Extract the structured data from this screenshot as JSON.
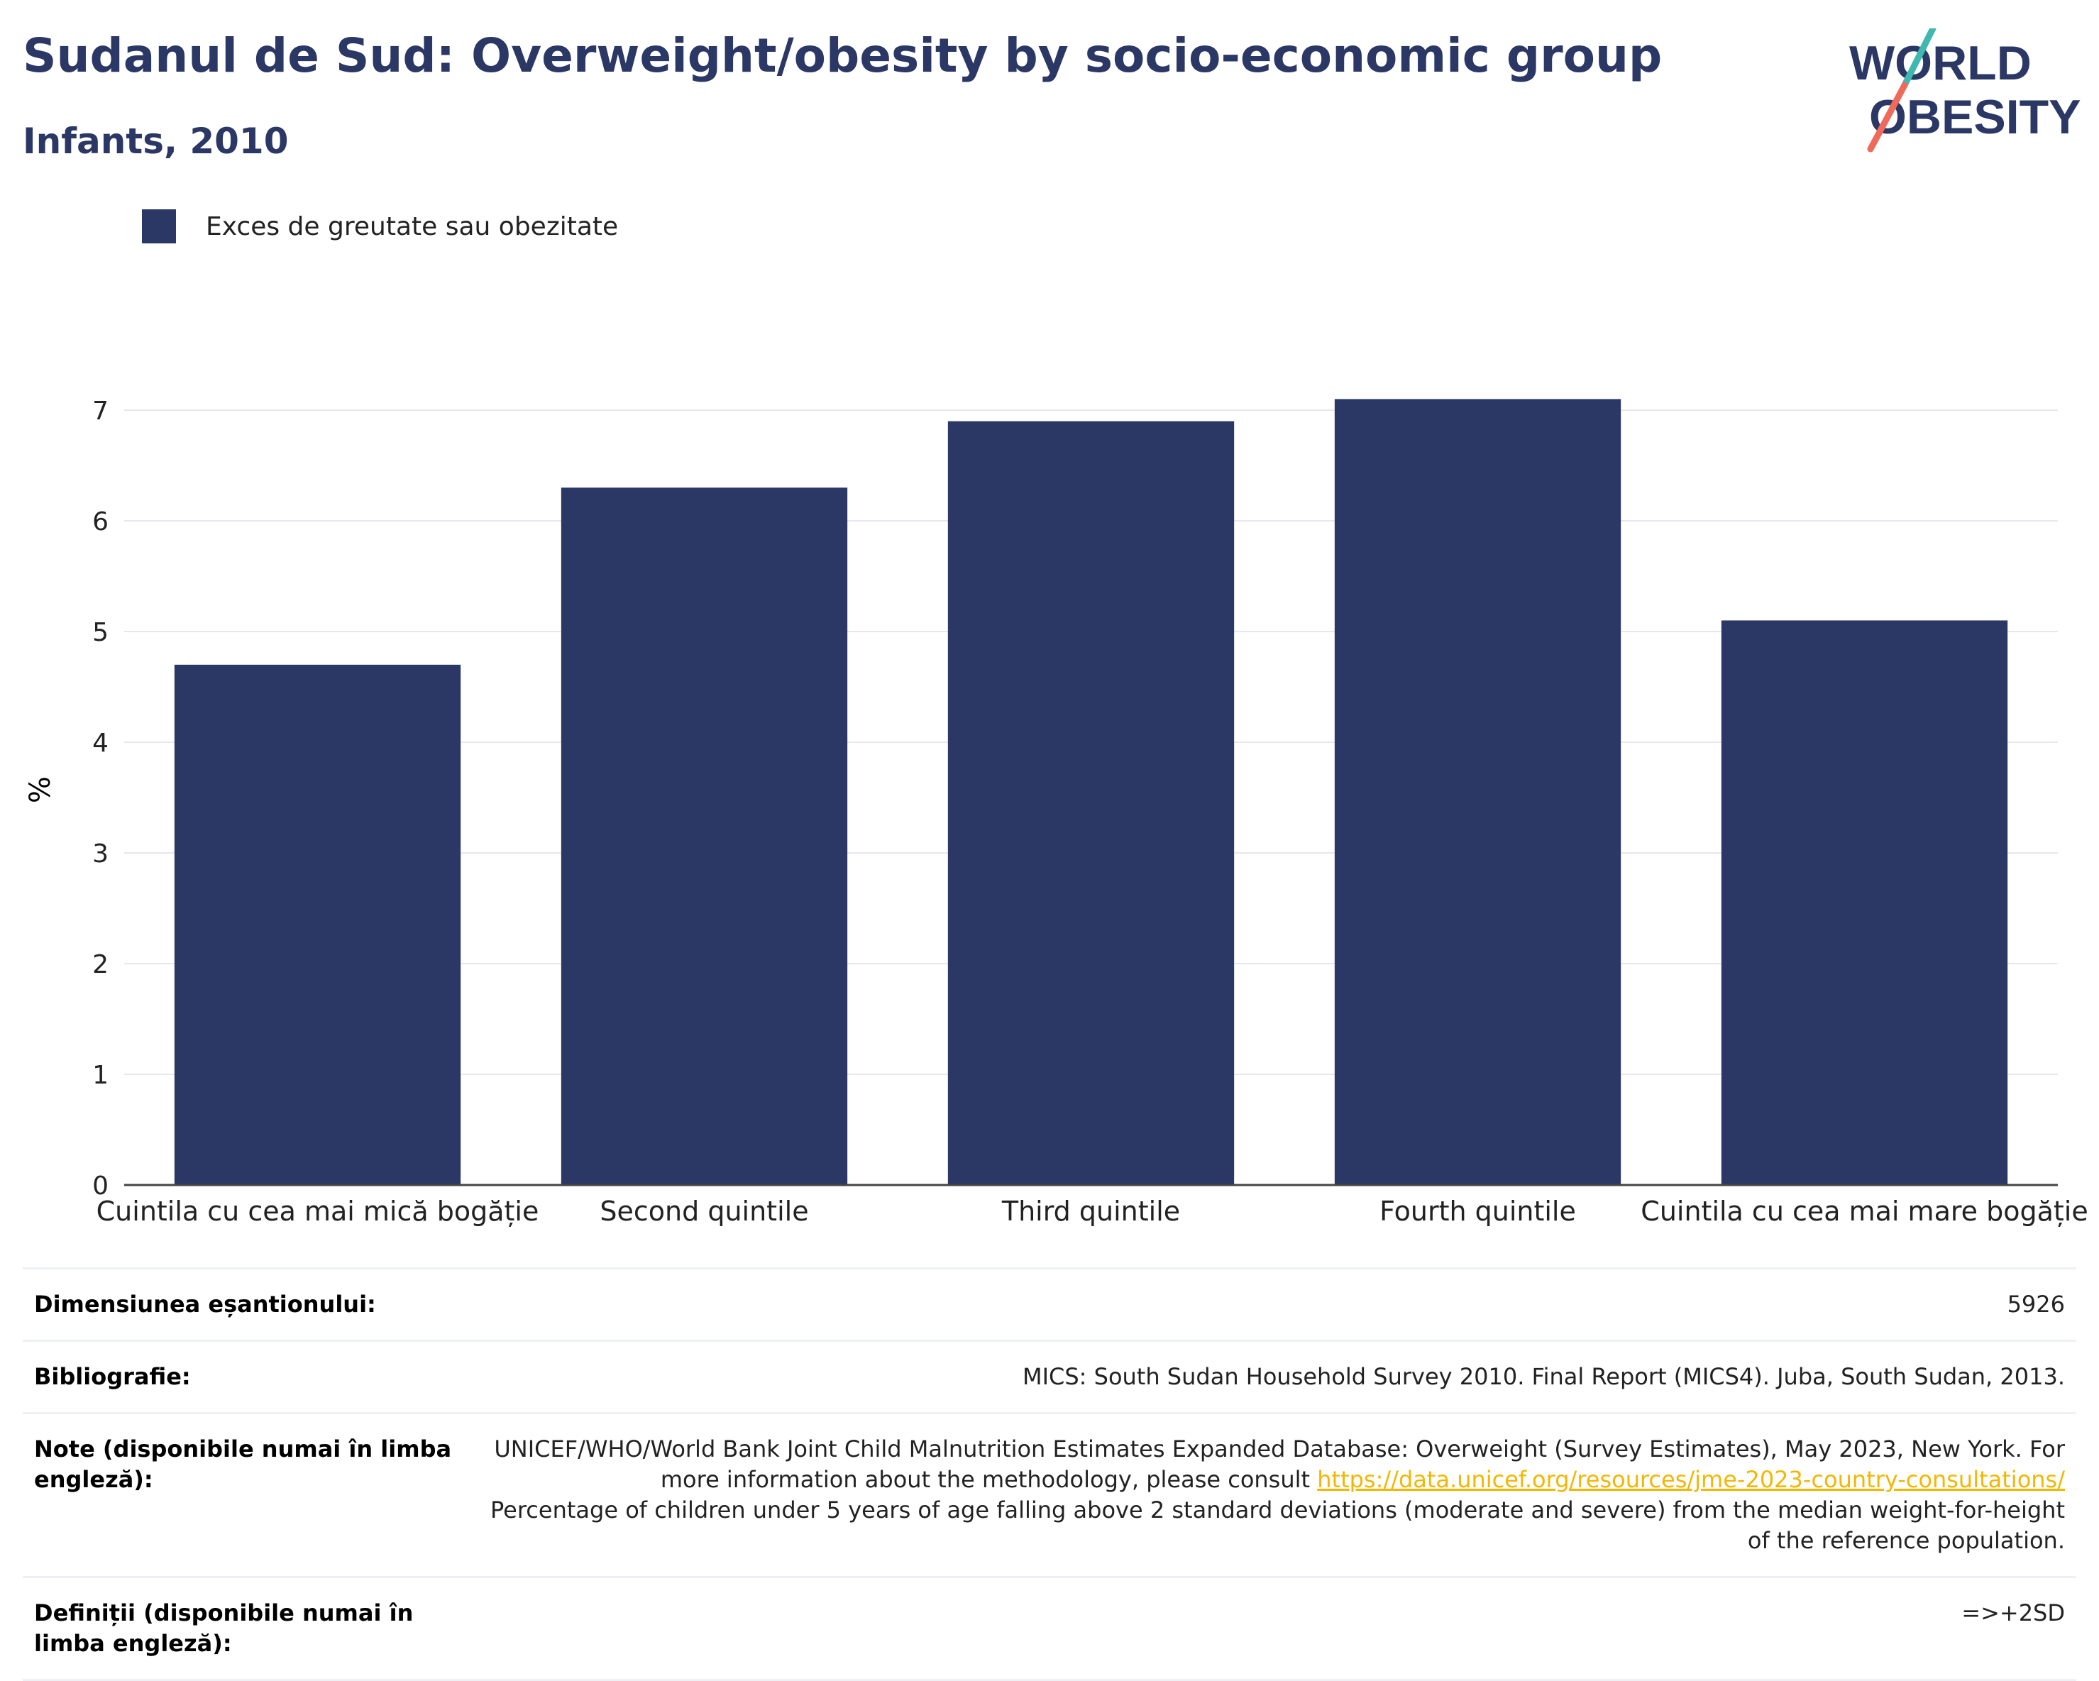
{
  "header": {
    "title": "Sudanul de Sud: Overweight/obesity by socio-economic group",
    "subtitle": "Infants, 2010"
  },
  "logo": {
    "line1": "WORLD",
    "line2": "OBESITY"
  },
  "legend": {
    "label": "Exces de greutate sau obezitate",
    "color": "#2b3764"
  },
  "chart_data": {
    "type": "bar",
    "categories": [
      "Cuintila cu cea mai mică bogăție",
      "Second quintile",
      "Third quintile",
      "Fourth quintile",
      "Cuintila cu cea mai mare bogăție"
    ],
    "series": [
      {
        "name": "Exces de greutate sau obezitate",
        "values": [
          4.7,
          6.3,
          6.9,
          7.1,
          5.1
        ],
        "color": "#2b3764"
      }
    ],
    "ylabel": "%",
    "ylim": [
      0,
      7.5
    ],
    "yticks": [
      0,
      1,
      2,
      3,
      4,
      5,
      6,
      7
    ],
    "grid": true
  },
  "info": {
    "sample_label": "Dimensiunea eșantionului:",
    "sample_value": "5926",
    "biblio_label": "Bibliografie:",
    "biblio_value": "MICS: South Sudan Household Survey 2010. Final Report (MICS4). Juba, South Sudan, 2013.",
    "notes_label": "Note (disponibile numai în limba engleză):",
    "notes_text1": "UNICEF/WHO/World Bank Joint Child Malnutrition Estimates Expanded Database: Overweight (Survey Estimates), May 2023, New York. For more information about the methodology, please consult ",
    "notes_link": "https://data.unicef.org/resources/jme-2023-country-consultations/",
    "notes_text2": "Percentage of children under 5 years of age falling above 2 standard deviations (moderate and severe) from the median weight-for-height of the reference population.",
    "defs_label": "Definiții (disponibile numai în limba engleză):",
    "defs_value": "=>+2SD"
  }
}
